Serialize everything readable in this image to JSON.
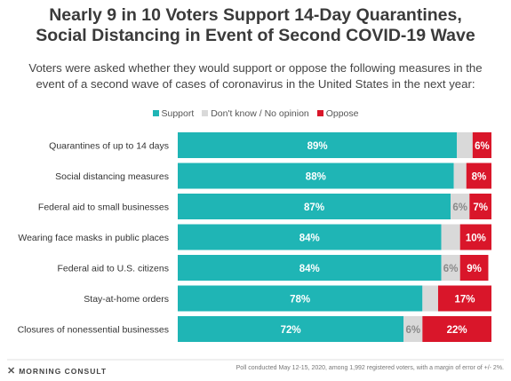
{
  "title_line1": "Nearly 9 in 10 Voters Support 14-Day Quarantines,",
  "title_line2": "Social Distancing in Event of Second COVID-19 Wave",
  "subtitle_line1": "Voters were asked whether they would support or oppose the following measures in the",
  "subtitle_line2": "event of a second wave of cases of coronavirus in the United States in the next year:",
  "legend": {
    "support": "Support",
    "dontknow": "Don't know / No opinion",
    "oppose": "Oppose"
  },
  "colors": {
    "support": "#1fb5b5",
    "dontknow": "#d9d9d9",
    "oppose": "#d9162a"
  },
  "footer": {
    "brand": "MORNING CONSULT",
    "note": "Poll conducted May 12-15, 2020, among 1,992 registered voters, with a margin of error of +/- 2%."
  },
  "chart_data": {
    "type": "bar",
    "orientation": "horizontal",
    "stacked": true,
    "categories": [
      "Quarantines of up to 14 days",
      "Social distancing measures",
      "Federal aid to small businesses",
      "Wearing face masks in public places",
      "Federal aid to U.S. citizens",
      "Stay-at-home orders",
      "Closures of nonessential businesses"
    ],
    "series": [
      {
        "name": "Support",
        "values": [
          89,
          88,
          87,
          84,
          84,
          78,
          72
        ]
      },
      {
        "name": "Don't know / No opinion",
        "values": [
          5,
          4,
          6,
          6,
          6,
          5,
          6
        ]
      },
      {
        "name": "Oppose",
        "values": [
          6,
          8,
          7,
          10,
          9,
          17,
          22
        ]
      }
    ],
    "data_labels": [
      [
        "89%",
        "",
        "6%"
      ],
      [
        "88%",
        "",
        "8%"
      ],
      [
        "87%",
        "6%",
        "7%"
      ],
      [
        "84%",
        "",
        "10%"
      ],
      [
        "84%",
        "6%",
        "9%"
      ],
      [
        "78%",
        "",
        "17%"
      ],
      [
        "72%",
        "6%",
        "22%"
      ]
    ],
    "xlim": [
      0,
      100
    ],
    "legend_position": "top",
    "grid": false
  }
}
